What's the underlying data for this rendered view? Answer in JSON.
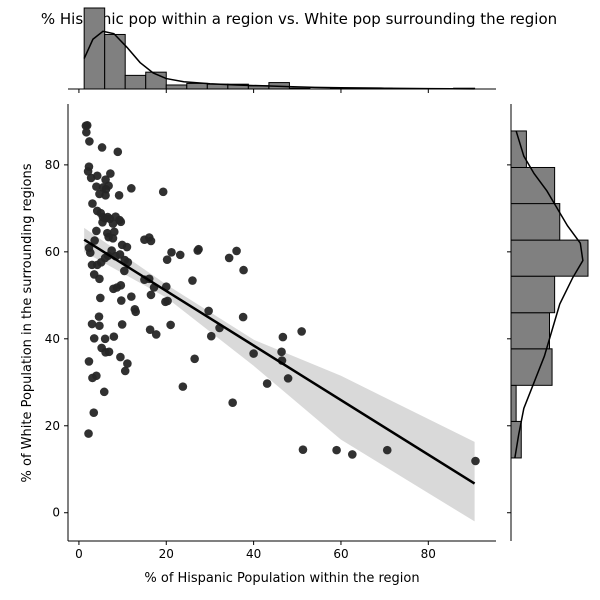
{
  "chart_data": {
    "type": "scatter",
    "title": "% Hispanic pop within a region vs. White pop surrounding the region",
    "xlabel": "% of Hispanic Population within the region",
    "ylabel": "% of White Population in the surrounding regions",
    "xlim": [
      -2.5,
      95.5
    ],
    "ylim": [
      -6.5,
      94
    ],
    "x_ticks": [
      0,
      20,
      40,
      60,
      80
    ],
    "y_ticks": [
      0,
      20,
      40,
      60,
      80
    ],
    "grid": false,
    "colors": {
      "points": "#262626",
      "hist": "#808080",
      "line": "#000000",
      "band": "#d9d9d9"
    },
    "regression": {
      "x": [
        1.2,
        90.6
      ],
      "y": [
        62.8,
        6.7
      ],
      "ci_lower": [
        60.0,
        -2.0
      ],
      "ci_upper": [
        65.5,
        16.3
      ],
      "ci_mid_lower": [
        [
          20,
          49.5
        ],
        [
          40,
          33.8
        ],
        [
          60,
          16.8
        ]
      ],
      "ci_mid_upper": [
        [
          20,
          52.5
        ],
        [
          40,
          39.8
        ],
        [
          60,
          31.5
        ]
      ]
    },
    "points": [
      [
        1.6,
        89.0
      ],
      [
        1.9,
        89.1
      ],
      [
        1.7,
        87.5
      ],
      [
        2.4,
        85.4
      ],
      [
        5.3,
        84.0
      ],
      [
        8.9,
        83.0
      ],
      [
        2.3,
        79.6
      ],
      [
        2.1,
        78.5
      ],
      [
        2.8,
        77.0
      ],
      [
        4.2,
        77.5
      ],
      [
        6.1,
        76.6
      ],
      [
        7.2,
        78.0
      ],
      [
        4.0,
        75.0
      ],
      [
        5.5,
        74.8
      ],
      [
        6.2,
        74.4
      ],
      [
        6.8,
        75.2
      ],
      [
        12.0,
        74.6
      ],
      [
        19.3,
        73.8
      ],
      [
        4.7,
        73.3
      ],
      [
        6.1,
        73.0
      ],
      [
        9.2,
        73.0
      ],
      [
        3.1,
        71.1
      ],
      [
        4.2,
        69.4
      ],
      [
        5.0,
        68.9
      ],
      [
        5.5,
        68.0
      ],
      [
        6.0,
        67.7
      ],
      [
        6.6,
        68.0
      ],
      [
        7.1,
        67.6
      ],
      [
        8.4,
        68.1
      ],
      [
        9.3,
        67.3
      ],
      [
        5.4,
        66.8
      ],
      [
        7.8,
        66.5
      ],
      [
        9.6,
        66.9
      ],
      [
        4.0,
        64.8
      ],
      [
        6.5,
        64.3
      ],
      [
        8.1,
        64.6
      ],
      [
        6.8,
        63.4
      ],
      [
        7.8,
        63.1
      ],
      [
        3.6,
        62.6
      ],
      [
        9.9,
        61.6
      ],
      [
        11.0,
        61.1
      ],
      [
        15.0,
        62.8
      ],
      [
        16.1,
        63.3
      ],
      [
        16.5,
        62.5
      ],
      [
        2.3,
        60.9
      ],
      [
        2.6,
        59.8
      ],
      [
        7.5,
        60.3
      ],
      [
        8.4,
        59.0
      ],
      [
        9.4,
        59.4
      ],
      [
        10.5,
        58.1
      ],
      [
        11.2,
        57.6
      ],
      [
        21.2,
        59.9
      ],
      [
        23.2,
        59.3
      ],
      [
        27.2,
        60.3
      ],
      [
        27.4,
        60.6
      ],
      [
        36.1,
        60.2
      ],
      [
        34.4,
        58.6
      ],
      [
        20.2,
        58.2
      ],
      [
        3.0,
        57.0
      ],
      [
        4.2,
        57.0
      ],
      [
        5.1,
        57.6
      ],
      [
        6.0,
        58.6
      ],
      [
        6.7,
        59.1
      ],
      [
        37.7,
        55.8
      ],
      [
        10.4,
        55.6
      ],
      [
        3.5,
        54.8
      ],
      [
        4.7,
        53.8
      ],
      [
        15.0,
        53.6
      ],
      [
        16.1,
        53.8
      ],
      [
        26.0,
        53.4
      ],
      [
        17.2,
        51.8
      ],
      [
        20.0,
        52.0
      ],
      [
        7.9,
        51.5
      ],
      [
        8.7,
        51.8
      ],
      [
        9.6,
        52.3
      ],
      [
        16.5,
        50.1
      ],
      [
        4.9,
        49.4
      ],
      [
        9.7,
        48.8
      ],
      [
        12.0,
        49.7
      ],
      [
        19.8,
        48.5
      ],
      [
        20.3,
        48.7
      ],
      [
        12.8,
        46.8
      ],
      [
        13.0,
        46.2
      ],
      [
        29.7,
        46.4
      ],
      [
        4.6,
        45.1
      ],
      [
        37.6,
        45.0
      ],
      [
        3.0,
        43.4
      ],
      [
        9.9,
        43.3
      ],
      [
        21.0,
        43.2
      ],
      [
        4.7,
        43.0
      ],
      [
        32.2,
        42.5
      ],
      [
        16.3,
        42.1
      ],
      [
        51.0,
        41.7
      ],
      [
        17.7,
        41.0
      ],
      [
        30.3,
        40.6
      ],
      [
        46.7,
        40.4
      ],
      [
        3.5,
        40.1
      ],
      [
        6.0,
        40.0
      ],
      [
        8.0,
        40.5
      ],
      [
        5.2,
        37.9
      ],
      [
        46.4,
        37.0
      ],
      [
        6.1,
        36.9
      ],
      [
        40.0,
        36.6
      ],
      [
        6.9,
        37.0
      ],
      [
        9.5,
        35.8
      ],
      [
        26.5,
        35.4
      ],
      [
        46.5,
        35.0
      ],
      [
        2.3,
        34.8
      ],
      [
        11.1,
        34.3
      ],
      [
        10.6,
        32.6
      ],
      [
        4.0,
        31.5
      ],
      [
        3.1,
        31.0
      ],
      [
        47.9,
        30.9
      ],
      [
        23.8,
        29.0
      ],
      [
        43.1,
        29.7
      ],
      [
        5.8,
        27.8
      ],
      [
        35.2,
        25.3
      ],
      [
        3.4,
        23.0
      ],
      [
        2.2,
        18.2
      ],
      [
        51.3,
        14.5
      ],
      [
        59.0,
        14.4
      ],
      [
        62.6,
        13.4
      ],
      [
        70.6,
        14.4
      ],
      [
        90.8,
        11.9
      ]
    ],
    "x_histogram": {
      "bins": [
        [
          1.2,
          5.9,
          101
        ],
        [
          5.9,
          10.6,
          68
        ],
        [
          10.6,
          15.3,
          17
        ],
        [
          15.3,
          20.0,
          21
        ],
        [
          20.0,
          24.7,
          5
        ],
        [
          24.7,
          29.4,
          7
        ],
        [
          29.4,
          34.1,
          6
        ],
        [
          34.1,
          38.8,
          6
        ],
        [
          38.8,
          43.5,
          4
        ],
        [
          43.5,
          48.2,
          8
        ],
        [
          48.2,
          52.9,
          1
        ],
        [
          52.9,
          57.6,
          0
        ],
        [
          57.6,
          62.3,
          1
        ],
        [
          62.3,
          67.0,
          1
        ],
        [
          67.0,
          71.7,
          1
        ],
        [
          71.7,
          76.4,
          0
        ],
        [
          76.4,
          81.1,
          0
        ],
        [
          81.1,
          85.8,
          0
        ],
        [
          85.8,
          90.6,
          1
        ]
      ],
      "kde": [
        [
          1.2,
          38
        ],
        [
          3.2,
          62
        ],
        [
          5.5,
          72
        ],
        [
          8.0,
          69
        ],
        [
          11.0,
          52
        ],
        [
          14.0,
          33
        ],
        [
          17.0,
          20
        ],
        [
          20.0,
          13
        ],
        [
          24.0,
          9
        ],
        [
          30.0,
          6.5
        ],
        [
          36.0,
          5
        ],
        [
          42.0,
          4
        ],
        [
          48.0,
          3
        ],
        [
          54.0,
          2
        ],
        [
          60.0,
          1.5
        ],
        [
          70.0,
          1
        ],
        [
          80.0,
          0.5
        ],
        [
          90.6,
          0.2
        ]
      ]
    },
    "y_histogram": {
      "bins": [
        [
          12.6,
          21.0,
          4
        ],
        [
          21.0,
          29.3,
          2
        ],
        [
          29.3,
          37.7,
          16
        ],
        [
          37.7,
          46.0,
          15
        ],
        [
          46.0,
          54.4,
          17
        ],
        [
          54.4,
          62.7,
          30
        ],
        [
          62.7,
          71.1,
          19
        ],
        [
          71.1,
          79.4,
          17
        ],
        [
          79.4,
          87.8,
          6
        ]
      ],
      "kde": [
        [
          12.6,
          1.5
        ],
        [
          18.0,
          3
        ],
        [
          24.0,
          5
        ],
        [
          30.0,
          9
        ],
        [
          36.0,
          13
        ],
        [
          42.0,
          16
        ],
        [
          48.0,
          19
        ],
        [
          54.0,
          24
        ],
        [
          58.0,
          28
        ],
        [
          62.0,
          27
        ],
        [
          66.0,
          22
        ],
        [
          70.0,
          18
        ],
        [
          74.0,
          14
        ],
        [
          78.0,
          9
        ],
        [
          82.0,
          5
        ],
        [
          87.8,
          2
        ]
      ]
    }
  }
}
